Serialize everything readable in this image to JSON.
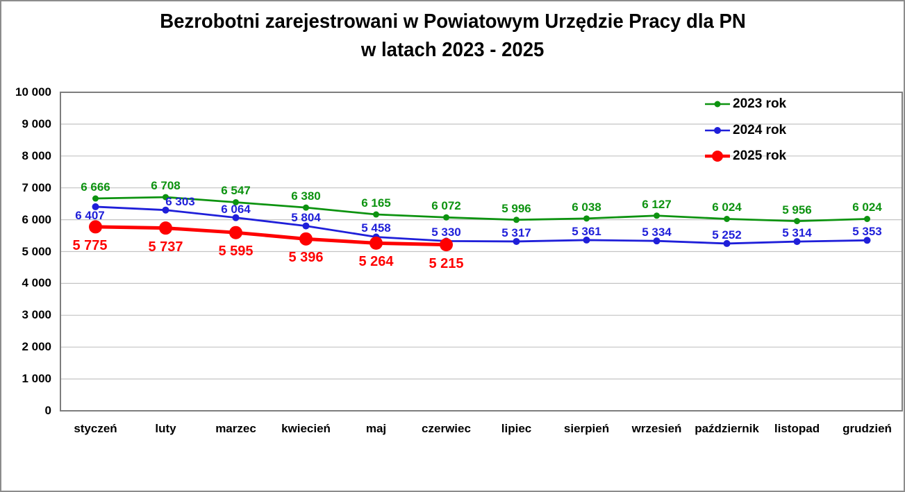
{
  "title": {
    "line1": "Bezrobotni zarejestrowani w Powiatowym Urzędzie Pracy dla PN",
    "line2": "w latach 2023 - 2025"
  },
  "colors": {
    "frame_border": "#8c8c8c",
    "plot_border": "#7d7d7d",
    "gridline": "#c3c3c3",
    "text": "#000000"
  },
  "chart_data": {
    "type": "line",
    "title": "Bezrobotni zarejestrowani w Powiatowym Urzędzie Pracy dla PN w latach 2023 - 2025",
    "categories": [
      "styczeń",
      "luty",
      "marzec",
      "kwiecień",
      "maj",
      "czerwiec",
      "lipiec",
      "sierpień",
      "wrzesień",
      "październik",
      "listopad",
      "grudzień"
    ],
    "series": [
      {
        "name": "2023 rok",
        "color": "#0d9310",
        "values": [
          6666,
          6708,
          6547,
          6380,
          6165,
          6072,
          5996,
          6038,
          6127,
          6024,
          5956,
          6024
        ],
        "value_labels": [
          "6 666",
          "6 708",
          "6 547",
          "6 380",
          "6 165",
          "6 072",
          "5 996",
          "6 038",
          "6 127",
          "6 024",
          "5 956",
          "6 024"
        ]
      },
      {
        "name": "2024 rok",
        "color": "#1f1fd9",
        "values": [
          6407,
          6303,
          6064,
          5804,
          5458,
          5330,
          5317,
          5361,
          5334,
          5252,
          5314,
          5353
        ],
        "value_labels": [
          "6 407",
          "6 303",
          "6 064",
          "5 804",
          "5 458",
          "5 330",
          "5 317",
          "5 361",
          "5 334",
          "5 252",
          "5 314",
          "5 353"
        ]
      },
      {
        "name": "2025 rok",
        "color": "#fe0000",
        "values": [
          5775,
          5737,
          5595,
          5396,
          5264,
          5215
        ],
        "value_labels": [
          "5 775",
          "5 737",
          "5 595",
          "5 396",
          "5 264",
          "5 215"
        ]
      }
    ],
    "ylim": [
      0,
      10000
    ],
    "ytick_step": 1000,
    "ytick_labels": [
      "0",
      "1 000",
      "2 000",
      "3 000",
      "4 000",
      "5 000",
      "6 000",
      "7 000",
      "8 000",
      "9 000",
      "10 000"
    ],
    "grid": true,
    "legend_position": "top-right",
    "legend": [
      "2023 rok",
      "2024 rok",
      "2025 rok"
    ]
  }
}
